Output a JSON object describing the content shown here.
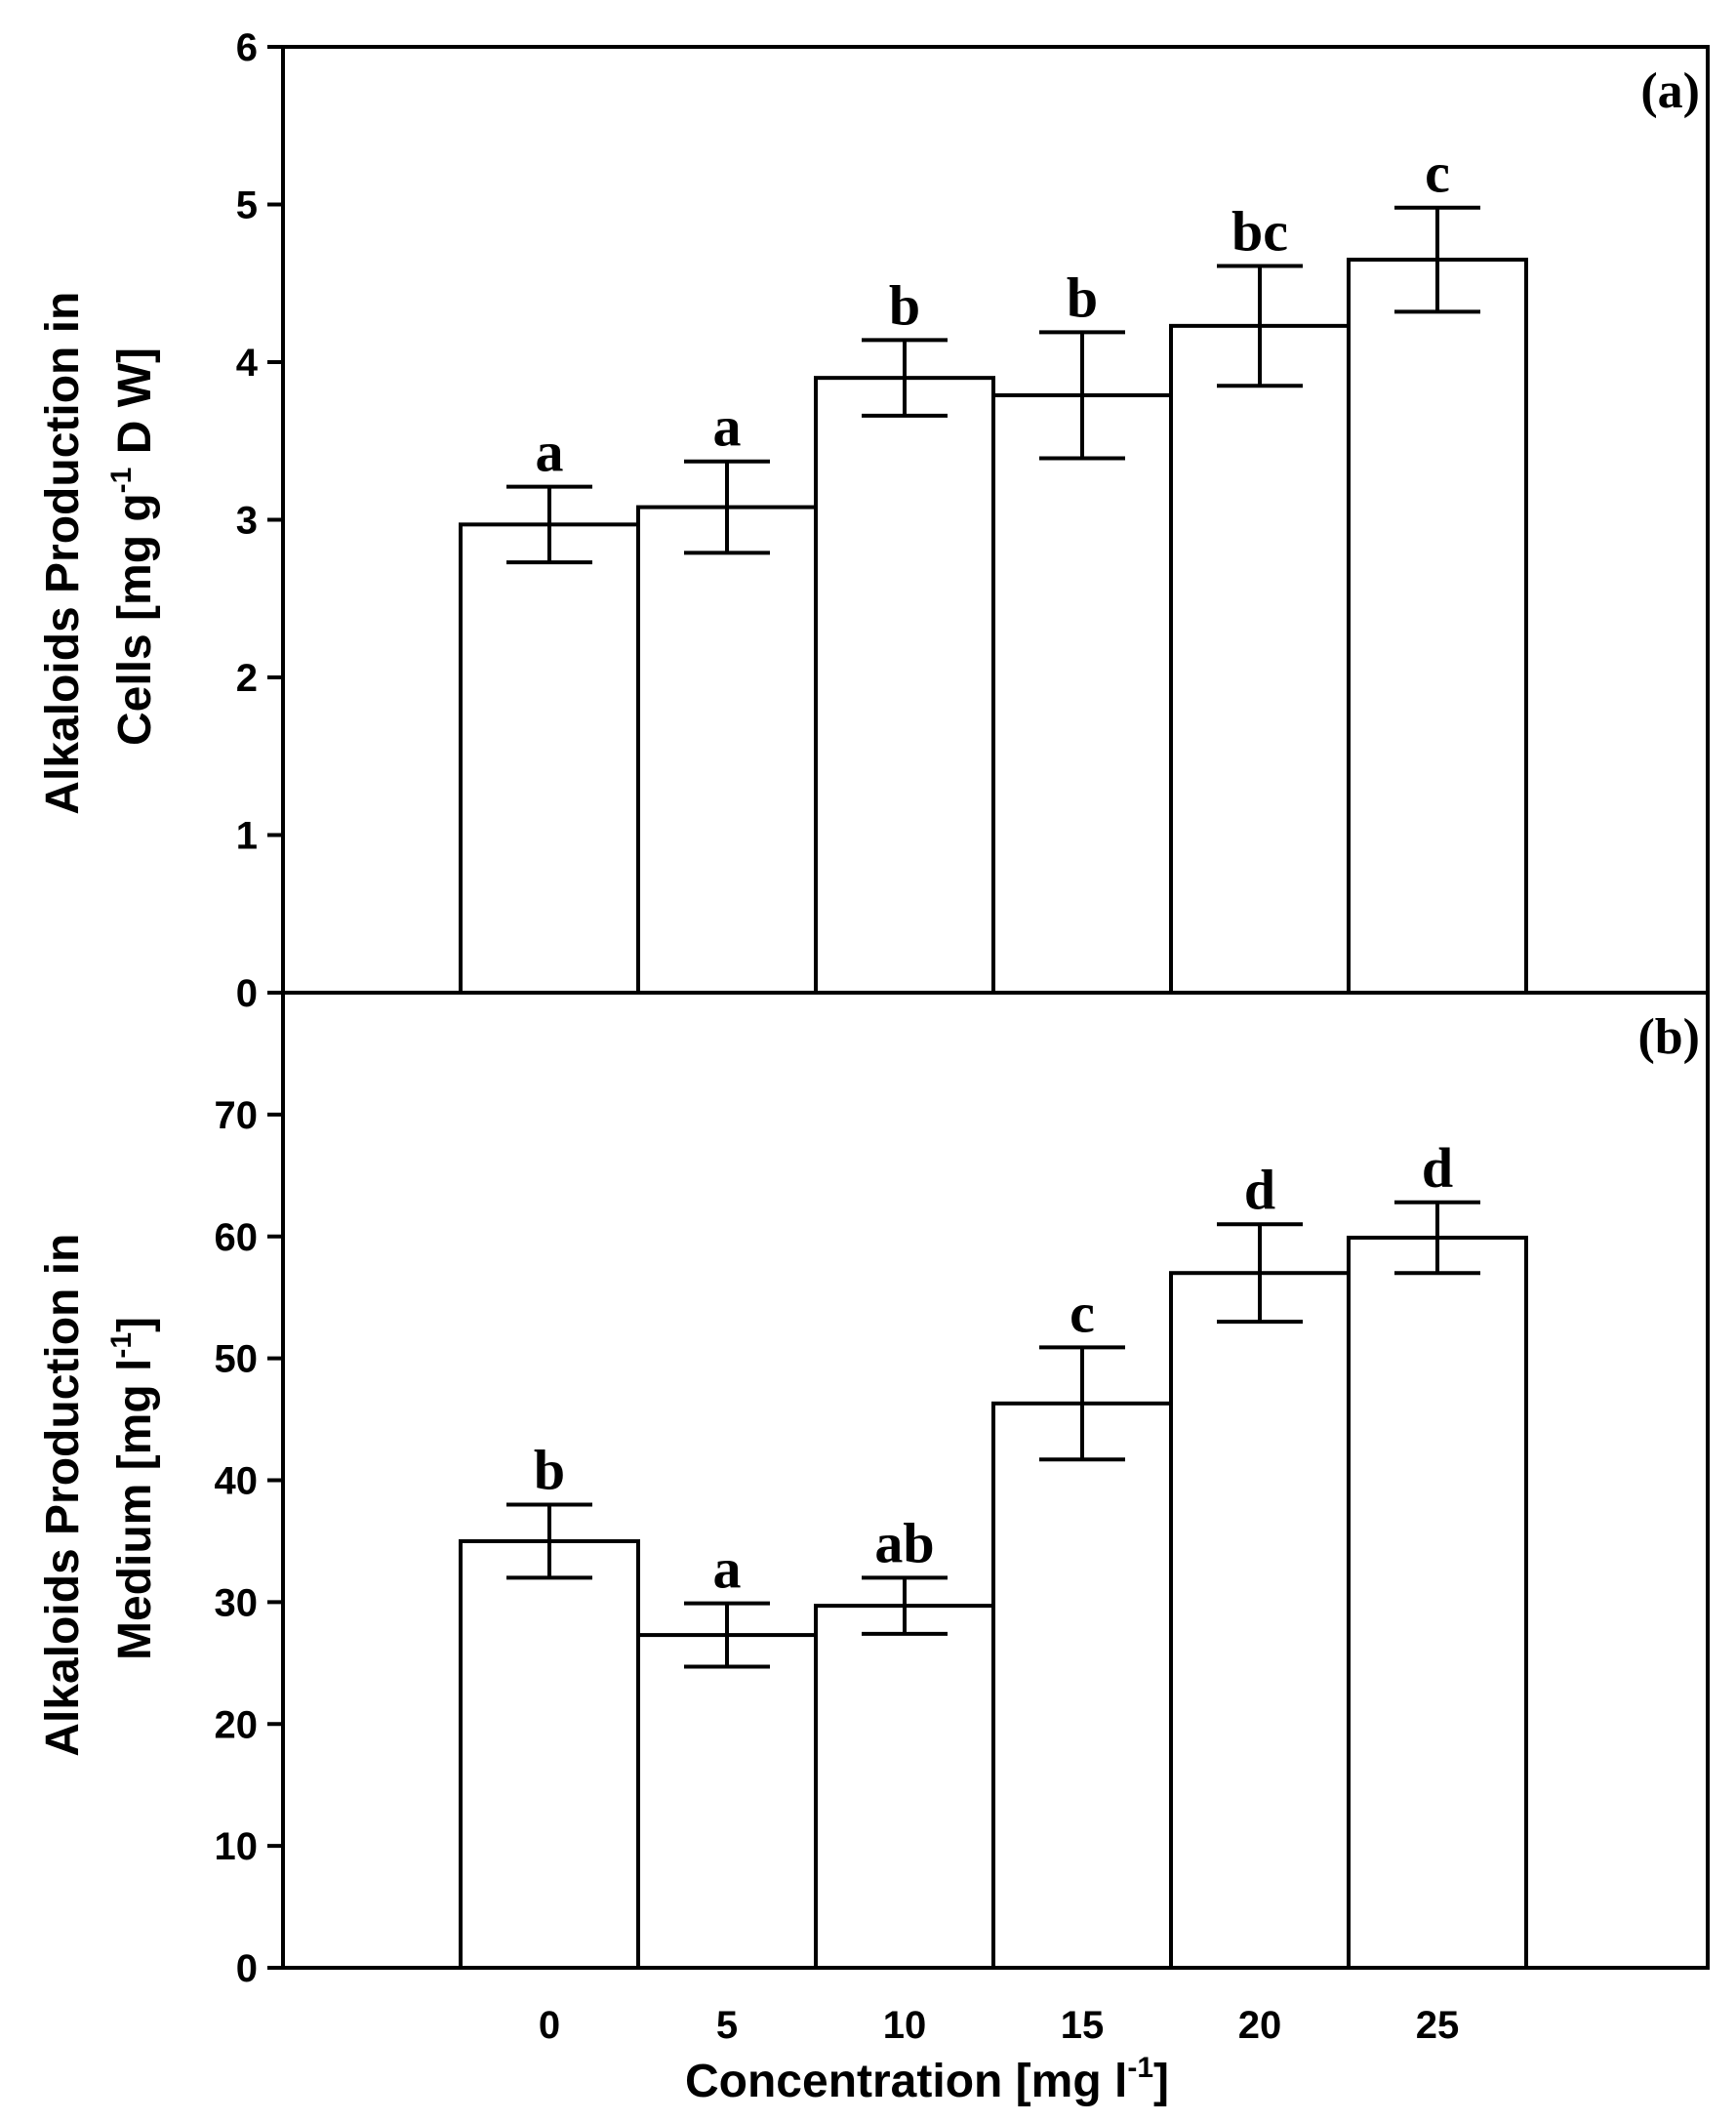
{
  "chart_data": [
    {
      "type": "bar",
      "panel_label": "(a)",
      "categories": [
        "0",
        "5",
        "10",
        "15",
        "20",
        "25"
      ],
      "values": [
        2.97,
        3.08,
        3.9,
        3.79,
        4.23,
        4.65
      ],
      "errors": [
        0.24,
        0.29,
        0.24,
        0.4,
        0.38,
        0.33
      ],
      "significance": [
        "a",
        "a",
        "b",
        "b",
        "bc",
        "c"
      ],
      "ylabel": {
        "line1": "Alkaloids Production in",
        "line2_pre": "Cells [mg g",
        "line2_sup": "-1",
        "line2_post": " D W]"
      },
      "ylim": [
        0,
        6
      ],
      "yticks": [
        "0",
        "1",
        "2",
        "3",
        "4",
        "5",
        "6"
      ]
    },
    {
      "type": "bar",
      "panel_label": "(b)",
      "categories": [
        "0",
        "5",
        "10",
        "15",
        "20",
        "25"
      ],
      "values": [
        35.0,
        27.3,
        29.7,
        46.3,
        57.0,
        59.9
      ],
      "errors": [
        3.0,
        2.6,
        2.3,
        4.6,
        4.0,
        2.9
      ],
      "significance": [
        "b",
        "a",
        "ab",
        "c",
        "d",
        "d"
      ],
      "ylabel": {
        "line1": "Alkaloids Production in",
        "line2_pre": "Medium [mg l",
        "line2_sup": "-1",
        "line2_post": "]"
      },
      "ylim": [
        0,
        80
      ],
      "yticks": [
        "0",
        "10",
        "20",
        "30",
        "40",
        "50",
        "60",
        "70"
      ]
    }
  ],
  "xlabel": {
    "pre": "Concentration [mg l",
    "sup": "-1",
    "post": "]"
  },
  "xticks": [
    "0",
    "5",
    "10",
    "15",
    "20",
    "25"
  ]
}
